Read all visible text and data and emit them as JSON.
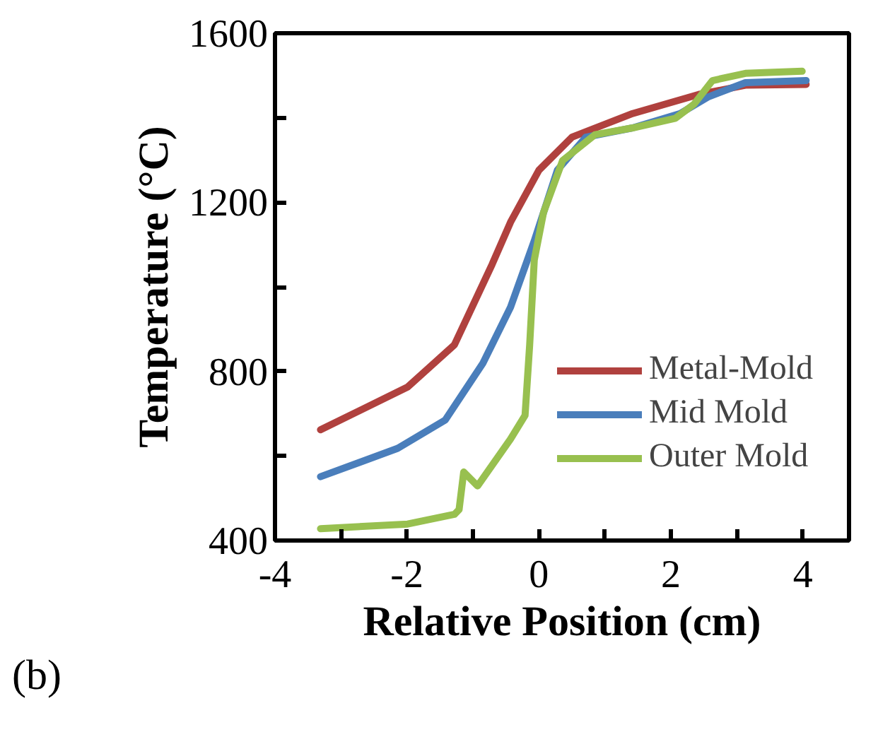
{
  "chart_data": {
    "type": "line",
    "xlabel": "Relative Position (cm)",
    "ylabel": "Temperature (°C)",
    "annotations": [
      "(b)"
    ],
    "xlim": [
      -4,
      4.7
    ],
    "ylim": [
      400,
      1600
    ],
    "xticks": [
      -4,
      {
        "value": -3,
        "label": null
      },
      -2,
      {
        "value": -1,
        "label": null
      },
      0,
      {
        "value": 1,
        "label": null
      },
      2,
      {
        "value": 3,
        "label": null
      },
      4
    ],
    "yticks": [
      400,
      {
        "value": 600,
        "label": null
      },
      800,
      {
        "value": 1000,
        "label": null
      },
      1200,
      {
        "value": 1400,
        "label": null
      },
      1600
    ],
    "grid": false,
    "legend": "right",
    "line_style": "solid",
    "marker": "none",
    "series": [
      {
        "name": "Metal-Mold",
        "color": "#b0413e",
        "x": [
          -3.31,
          -1.99,
          -1.28,
          -0.71,
          -0.43,
          0,
          0.5,
          1.42,
          2.42,
          3.13,
          4.05
        ],
        "values": [
          662,
          763,
          863,
          1053,
          1153,
          1276,
          1354,
          1410,
          1455,
          1477,
          1479
        ]
      },
      {
        "name": "Mid Mold",
        "color": "#4a7ebb",
        "x": [
          -3.31,
          -2.14,
          -1.42,
          -0.85,
          -0.43,
          -0.07,
          0.28,
          0.71,
          1.42,
          2.14,
          2.56,
          3.13,
          4.05
        ],
        "values": [
          551,
          618,
          685,
          819,
          952,
          1109,
          1276,
          1354,
          1376,
          1410,
          1449,
          1483,
          1488
        ]
      },
      {
        "name": "Outer Mold",
        "color": "#98c04f",
        "x": [
          -3.31,
          -1.99,
          -1.28,
          -1.21,
          -1.14,
          -0.93,
          -0.43,
          -0.21,
          -0.14,
          -0.07,
          0.07,
          0.36,
          0.85,
          1.42,
          2.07,
          2.35,
          2.63,
          3.13,
          3.99
        ],
        "values": [
          428,
          439,
          462,
          473,
          562,
          529,
          640,
          696,
          863,
          1064,
          1176,
          1299,
          1360,
          1376,
          1399,
          1432,
          1488,
          1505,
          1510
        ]
      }
    ]
  }
}
